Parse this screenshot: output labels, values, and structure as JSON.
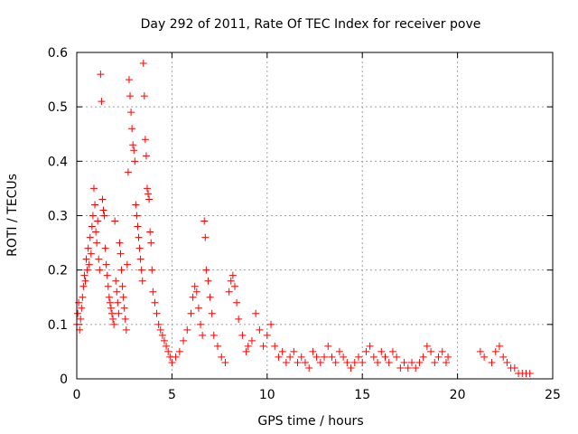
{
  "chart_data": {
    "type": "scatter",
    "title": "Day 292 of 2011, Rate Of TEC Index for receiver pove",
    "xlabel": "GPS time / hours",
    "ylabel": "ROTI / TECUs",
    "xlim": [
      0,
      25
    ],
    "ylim": [
      0,
      0.6
    ],
    "xticks": [
      0,
      5,
      10,
      15,
      20,
      25
    ],
    "yticks": [
      0,
      0.1,
      0.2,
      0.3,
      0.4,
      0.5,
      0.6
    ],
    "xtick_labels": [
      "0",
      "5",
      "10",
      "15",
      "20",
      "25"
    ],
    "ytick_labels": [
      "0",
      "0.1",
      "0.2",
      "0.3",
      "0.4",
      "0.5",
      "0.6"
    ],
    "grid": true,
    "marker": "+",
    "series": [
      {
        "name": "ROTI",
        "color": "#ff0000",
        "points": [
          [
            0.0,
            0.1
          ],
          [
            0.05,
            0.12
          ],
          [
            0.1,
            0.14
          ],
          [
            0.15,
            0.09
          ],
          [
            0.2,
            0.11
          ],
          [
            0.25,
            0.13
          ],
          [
            0.3,
            0.15
          ],
          [
            0.35,
            0.17
          ],
          [
            0.4,
            0.19
          ],
          [
            0.45,
            0.18
          ],
          [
            0.5,
            0.22
          ],
          [
            0.55,
            0.2
          ],
          [
            0.6,
            0.24
          ],
          [
            0.65,
            0.21
          ],
          [
            0.7,
            0.26
          ],
          [
            0.75,
            0.23
          ],
          [
            0.8,
            0.28
          ],
          [
            0.85,
            0.3
          ],
          [
            0.9,
            0.35
          ],
          [
            0.95,
            0.32
          ],
          [
            1.0,
            0.27
          ],
          [
            1.05,
            0.25
          ],
          [
            1.1,
            0.29
          ],
          [
            1.15,
            0.22
          ],
          [
            1.2,
            0.2
          ],
          [
            1.25,
            0.56
          ],
          [
            1.3,
            0.51
          ],
          [
            1.35,
            0.33
          ],
          [
            1.4,
            0.31
          ],
          [
            1.45,
            0.3
          ],
          [
            1.5,
            0.24
          ],
          [
            1.55,
            0.21
          ],
          [
            1.6,
            0.19
          ],
          [
            1.65,
            0.17
          ],
          [
            1.7,
            0.15
          ],
          [
            1.75,
            0.14
          ],
          [
            1.8,
            0.13
          ],
          [
            1.85,
            0.12
          ],
          [
            1.9,
            0.11
          ],
          [
            1.95,
            0.1
          ],
          [
            2.0,
            0.29
          ],
          [
            2.05,
            0.18
          ],
          [
            2.1,
            0.16
          ],
          [
            2.15,
            0.14
          ],
          [
            2.2,
            0.12
          ],
          [
            2.25,
            0.25
          ],
          [
            2.3,
            0.23
          ],
          [
            2.35,
            0.2
          ],
          [
            2.4,
            0.17
          ],
          [
            2.45,
            0.15
          ],
          [
            2.5,
            0.13
          ],
          [
            2.55,
            0.11
          ],
          [
            2.6,
            0.09
          ],
          [
            2.65,
            0.21
          ],
          [
            2.7,
            0.38
          ],
          [
            2.75,
            0.55
          ],
          [
            2.8,
            0.52
          ],
          [
            2.85,
            0.49
          ],
          [
            2.9,
            0.46
          ],
          [
            2.95,
            0.43
          ],
          [
            3.0,
            0.42
          ],
          [
            3.05,
            0.4
          ],
          [
            3.1,
            0.32
          ],
          [
            3.15,
            0.3
          ],
          [
            3.2,
            0.28
          ],
          [
            3.25,
            0.26
          ],
          [
            3.3,
            0.24
          ],
          [
            3.35,
            0.22
          ],
          [
            3.4,
            0.2
          ],
          [
            3.45,
            0.18
          ],
          [
            3.5,
            0.58
          ],
          [
            3.55,
            0.52
          ],
          [
            3.6,
            0.44
          ],
          [
            3.65,
            0.41
          ],
          [
            3.7,
            0.35
          ],
          [
            3.75,
            0.34
          ],
          [
            3.8,
            0.33
          ],
          [
            3.85,
            0.27
          ],
          [
            3.9,
            0.25
          ],
          [
            3.95,
            0.2
          ],
          [
            4.0,
            0.16
          ],
          [
            4.1,
            0.14
          ],
          [
            4.2,
            0.12
          ],
          [
            4.3,
            0.1
          ],
          [
            4.4,
            0.09
          ],
          [
            4.5,
            0.08
          ],
          [
            4.6,
            0.07
          ],
          [
            4.7,
            0.06
          ],
          [
            4.8,
            0.05
          ],
          [
            4.9,
            0.04
          ],
          [
            5.0,
            0.03
          ],
          [
            5.2,
            0.04
          ],
          [
            5.4,
            0.05
          ],
          [
            5.6,
            0.07
          ],
          [
            5.8,
            0.09
          ],
          [
            6.0,
            0.12
          ],
          [
            6.1,
            0.15
          ],
          [
            6.2,
            0.17
          ],
          [
            6.3,
            0.16
          ],
          [
            6.4,
            0.13
          ],
          [
            6.5,
            0.1
          ],
          [
            6.6,
            0.08
          ],
          [
            6.7,
            0.29
          ],
          [
            6.75,
            0.26
          ],
          [
            6.8,
            0.2
          ],
          [
            6.9,
            0.18
          ],
          [
            7.0,
            0.15
          ],
          [
            7.1,
            0.12
          ],
          [
            7.2,
            0.08
          ],
          [
            7.4,
            0.06
          ],
          [
            7.6,
            0.04
          ],
          [
            7.8,
            0.03
          ],
          [
            8.0,
            0.16
          ],
          [
            8.1,
            0.18
          ],
          [
            8.2,
            0.19
          ],
          [
            8.3,
            0.17
          ],
          [
            8.4,
            0.14
          ],
          [
            8.5,
            0.11
          ],
          [
            8.7,
            0.08
          ],
          [
            8.9,
            0.05
          ],
          [
            9.0,
            0.06
          ],
          [
            9.2,
            0.07
          ],
          [
            9.4,
            0.12
          ],
          [
            9.6,
            0.09
          ],
          [
            9.8,
            0.06
          ],
          [
            10.0,
            0.08
          ],
          [
            10.2,
            0.1
          ],
          [
            10.4,
            0.06
          ],
          [
            10.6,
            0.04
          ],
          [
            10.8,
            0.05
          ],
          [
            11.0,
            0.03
          ],
          [
            11.2,
            0.04
          ],
          [
            11.4,
            0.05
          ],
          [
            11.6,
            0.03
          ],
          [
            11.8,
            0.04
          ],
          [
            12.0,
            0.03
          ],
          [
            12.2,
            0.02
          ],
          [
            12.4,
            0.05
          ],
          [
            12.6,
            0.04
          ],
          [
            12.8,
            0.03
          ],
          [
            13.0,
            0.04
          ],
          [
            13.2,
            0.06
          ],
          [
            13.4,
            0.04
          ],
          [
            13.6,
            0.03
          ],
          [
            13.8,
            0.05
          ],
          [
            14.0,
            0.04
          ],
          [
            14.2,
            0.03
          ],
          [
            14.4,
            0.02
          ],
          [
            14.6,
            0.03
          ],
          [
            14.8,
            0.04
          ],
          [
            15.0,
            0.03
          ],
          [
            15.2,
            0.05
          ],
          [
            15.4,
            0.06
          ],
          [
            15.6,
            0.04
          ],
          [
            15.8,
            0.03
          ],
          [
            16.0,
            0.05
          ],
          [
            16.2,
            0.04
          ],
          [
            16.4,
            0.03
          ],
          [
            16.6,
            0.05
          ],
          [
            16.8,
            0.04
          ],
          [
            17.0,
            0.02
          ],
          [
            17.2,
            0.03
          ],
          [
            17.4,
            0.02
          ],
          [
            17.6,
            0.03
          ],
          [
            17.8,
            0.02
          ],
          [
            18.0,
            0.03
          ],
          [
            18.2,
            0.04
          ],
          [
            18.4,
            0.06
          ],
          [
            18.6,
            0.05
          ],
          [
            18.8,
            0.03
          ],
          [
            19.0,
            0.04
          ],
          [
            19.2,
            0.05
          ],
          [
            19.4,
            0.03
          ],
          [
            19.5,
            0.04
          ],
          [
            21.2,
            0.05
          ],
          [
            21.4,
            0.04
          ],
          [
            21.8,
            0.03
          ],
          [
            22.0,
            0.05
          ],
          [
            22.2,
            0.06
          ],
          [
            22.4,
            0.04
          ],
          [
            22.6,
            0.03
          ],
          [
            22.8,
            0.02
          ],
          [
            23.0,
            0.02
          ],
          [
            23.2,
            0.01
          ],
          [
            23.4,
            0.01
          ],
          [
            23.6,
            0.01
          ],
          [
            23.8,
            0.01
          ]
        ]
      }
    ]
  }
}
